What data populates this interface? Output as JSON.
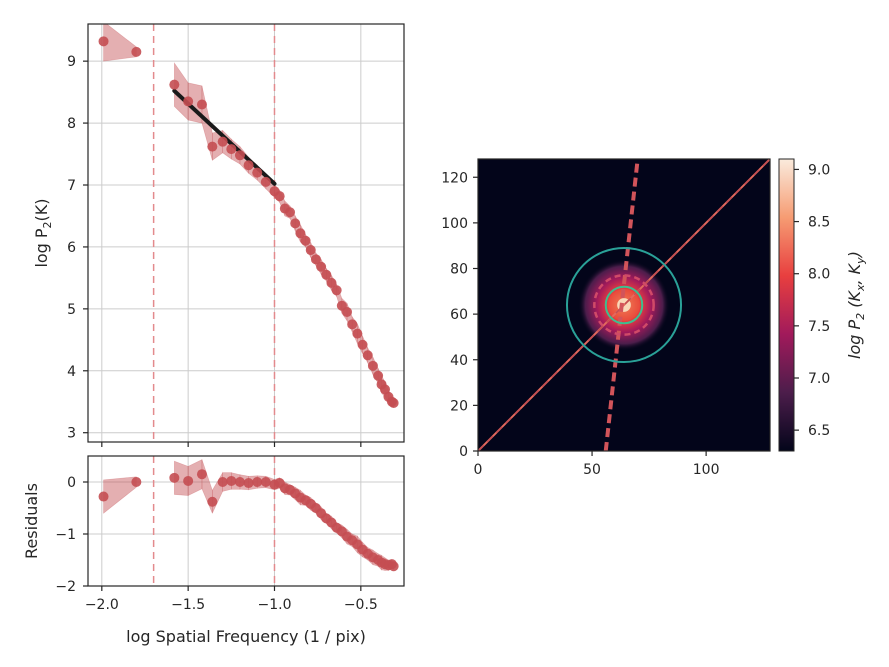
{
  "chart_data": [
    {
      "type": "scatter",
      "panel": "spectrum",
      "ylabel_base": "log P",
      "ylabel_sub": "2",
      "ylabel_tail": "(K)",
      "xlim": [
        -2.08,
        -0.25
      ],
      "ylim": [
        2.85,
        9.6
      ],
      "xticks": [
        -2.0,
        -1.5,
        -1.0,
        -0.5
      ],
      "yticks": [
        3,
        4,
        5,
        6,
        7,
        8,
        9
      ],
      "grid": true,
      "vlines": [
        -1.7,
        -1.0
      ],
      "fit_line": {
        "x": [
          -1.58,
          -1.0
        ],
        "y": [
          8.52,
          7.02
        ]
      },
      "series": [
        {
          "x": [
            -1.99,
            -1.8,
            -1.58,
            -1.5,
            -1.42,
            -1.36,
            -1.3,
            -1.25,
            -1.2,
            -1.15,
            -1.1,
            -1.05,
            -1.0,
            -0.97,
            -0.94,
            -0.91,
            -0.88,
            -0.85,
            -0.82,
            -0.79,
            -0.76,
            -0.73,
            -0.7,
            -0.67,
            -0.64,
            -0.61,
            -0.58,
            -0.55,
            -0.52,
            -0.49,
            -0.46,
            -0.43,
            -0.4,
            -0.38,
            -0.36,
            -0.34,
            -0.32,
            -0.31
          ],
          "y": [
            9.32,
            9.15,
            8.62,
            8.35,
            8.3,
            7.62,
            7.7,
            7.58,
            7.48,
            7.32,
            7.2,
            7.05,
            6.9,
            6.82,
            6.62,
            6.56,
            6.38,
            6.22,
            6.1,
            5.95,
            5.8,
            5.68,
            5.55,
            5.42,
            5.3,
            5.05,
            4.95,
            4.75,
            4.6,
            4.42,
            4.25,
            4.08,
            3.92,
            3.78,
            3.7,
            3.58,
            3.5,
            3.48
          ],
          "err": [
            0.32,
            0.08,
            0.35,
            0.3,
            0.3,
            0.22,
            0.18,
            0.16,
            0.14,
            0.13,
            0.12,
            0.11,
            0.1,
            0.1,
            0.12,
            0.1,
            0.12,
            0.14,
            0.1,
            0.12,
            0.1,
            0.12,
            0.1,
            0.12,
            0.1,
            0.12,
            0.14,
            0.12,
            0.16,
            0.14,
            0.12,
            0.14,
            0.12,
            0.14,
            0.12,
            0.1,
            0.08,
            0.06
          ]
        }
      ]
    },
    {
      "type": "scatter",
      "panel": "residuals",
      "xlabel": "log Spatial Frequency (1 / pix)",
      "ylabel": "Residuals",
      "xlim": [
        -2.08,
        -0.25
      ],
      "ylim": [
        -2,
        0.5
      ],
      "xticks": [
        -2.0,
        -1.5,
        -1.0,
        -0.5
      ],
      "yticks": [
        -2,
        -1,
        0
      ],
      "grid": true,
      "vlines": [
        -1.7,
        -1.0
      ],
      "series": [
        {
          "x": [
            -1.99,
            -1.8,
            -1.58,
            -1.5,
            -1.42,
            -1.36,
            -1.3,
            -1.25,
            -1.2,
            -1.15,
            -1.1,
            -1.05,
            -1.0,
            -0.97,
            -0.94,
            -0.91,
            -0.88,
            -0.85,
            -0.82,
            -0.79,
            -0.76,
            -0.73,
            -0.7,
            -0.67,
            -0.64,
            -0.61,
            -0.58,
            -0.55,
            -0.52,
            -0.49,
            -0.46,
            -0.43,
            -0.4,
            -0.38,
            -0.36,
            -0.34,
            -0.32,
            -0.31
          ],
          "y": [
            -0.28,
            0.0,
            0.08,
            0.02,
            0.15,
            -0.38,
            0.0,
            0.02,
            0.0,
            -0.02,
            0.0,
            0.0,
            -0.05,
            -0.02,
            -0.12,
            -0.15,
            -0.22,
            -0.3,
            -0.35,
            -0.42,
            -0.5,
            -0.6,
            -0.7,
            -0.78,
            -0.88,
            -0.95,
            -1.05,
            -1.12,
            -1.2,
            -1.3,
            -1.38,
            -1.45,
            -1.5,
            -1.55,
            -1.58,
            -1.6,
            -1.58,
            -1.62
          ],
          "err": [
            0.32,
            0.1,
            0.32,
            0.28,
            0.28,
            0.22,
            0.18,
            0.16,
            0.14,
            0.13,
            0.12,
            0.11,
            0.1,
            0.1,
            0.12,
            0.1,
            0.12,
            0.14,
            0.1,
            0.12,
            0.1,
            0.12,
            0.1,
            0.12,
            0.1,
            0.12,
            0.14,
            0.12,
            0.16,
            0.14,
            0.12,
            0.14,
            0.12,
            0.14,
            0.12,
            0.1,
            0.08,
            0.06
          ]
        }
      ]
    },
    {
      "type": "heatmap",
      "panel": "2d-power-spectrum",
      "xlim": [
        0,
        128
      ],
      "ylim": [
        0,
        128
      ],
      "xticks": [
        0,
        50,
        100
      ],
      "yticks": [
        0,
        20,
        40,
        60,
        80,
        100,
        120
      ],
      "center": [
        64,
        64
      ],
      "circle_radii": [
        8,
        25,
        128
      ],
      "dashed_line": {
        "x": [
          56,
          70
        ],
        "y": [
          0,
          128
        ]
      },
      "diagonal": {
        "x": [
          0,
          128
        ],
        "y": [
          0,
          128
        ]
      },
      "colorbar": {
        "label_base": "log P",
        "label_sub": "2",
        "label_tail": " (K",
        "label_kx_sub": "x",
        "label_mid": ", K",
        "label_ky_sub": "y",
        "label_end": ")",
        "range": [
          6.3,
          9.1
        ],
        "ticks": [
          "6.5",
          "7.0",
          "7.5",
          "8.0",
          "8.5",
          "9.0"
        ]
      }
    }
  ],
  "colors": {
    "points": "#c44e52",
    "band": "#c44e52",
    "fit": "#1a1a1a",
    "grid": "#cccccc",
    "vline": "#e38a8d",
    "circle": "#2aa198",
    "outer_circle": "#2a8c8c",
    "heat_bg": "#03051a"
  }
}
